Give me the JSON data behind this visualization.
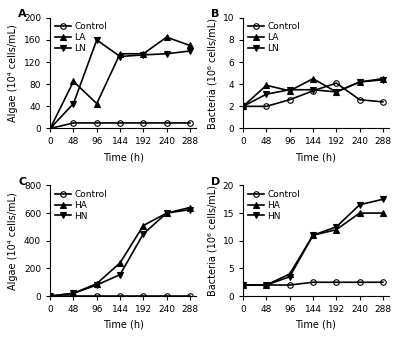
{
  "time": [
    0,
    48,
    96,
    144,
    192,
    240,
    288
  ],
  "A_control": [
    0,
    10,
    10,
    10,
    10,
    10,
    10
  ],
  "A_LA": [
    0,
    85,
    45,
    135,
    135,
    165,
    150
  ],
  "A_LN": [
    0,
    45,
    160,
    130,
    133,
    135,
    140
  ],
  "A_ylim": [
    0,
    200
  ],
  "A_yticks": [
    0,
    40,
    80,
    120,
    160,
    200
  ],
  "A_ylabel": "Algae (10⁴ cells/mL)",
  "A_label": "A",
  "B_control": [
    2.0,
    2.0,
    2.6,
    3.4,
    4.1,
    2.6,
    2.4
  ],
  "B_LA": [
    2.0,
    3.9,
    3.4,
    4.5,
    3.3,
    4.2,
    4.5
  ],
  "B_LN": [
    2.0,
    3.1,
    3.5,
    3.5,
    3.3,
    4.2,
    4.4
  ],
  "B_ylim": [
    0,
    10
  ],
  "B_yticks": [
    0,
    2,
    4,
    6,
    8,
    10
  ],
  "B_ylabel": "Bacteria (10⁶ cells/mL)",
  "B_label": "B",
  "C_control": [
    0,
    0,
    0,
    0,
    0,
    0,
    0
  ],
  "C_HA": [
    0,
    20,
    90,
    240,
    510,
    600,
    640
  ],
  "C_HN": [
    0,
    20,
    80,
    155,
    450,
    600,
    625
  ],
  "C_ylim": [
    0,
    800
  ],
  "C_yticks": [
    0,
    200,
    400,
    600,
    800
  ],
  "C_ylabel": "Algae (10⁴ cells/mL)",
  "C_label": "C",
  "D_control": [
    2.0,
    2.0,
    2.0,
    2.5,
    2.5,
    2.5,
    2.5
  ],
  "D_HA": [
    2.0,
    2.0,
    4.0,
    11.0,
    12.0,
    15.0,
    15.0
  ],
  "D_HN": [
    2.0,
    2.0,
    3.5,
    11.0,
    12.5,
    16.5,
    17.5
  ],
  "D_ylim": [
    0,
    20
  ],
  "D_yticks": [
    0,
    5,
    10,
    15,
    20
  ],
  "D_ylabel": "Bacteria (10⁶ cells/mL)",
  "D_label": "D",
  "xlabel": "Time (h)",
  "xticks": [
    0,
    48,
    96,
    144,
    192,
    240,
    288
  ],
  "xticklabels": [
    "0",
    "48",
    "96",
    "144",
    "192",
    "240",
    "288"
  ],
  "linewidth": 1.2,
  "markersize": 4,
  "fontsize_axis_label": 7,
  "fontsize_tick": 6.5,
  "fontsize_legend": 6.5,
  "fontsize_panel": 8
}
